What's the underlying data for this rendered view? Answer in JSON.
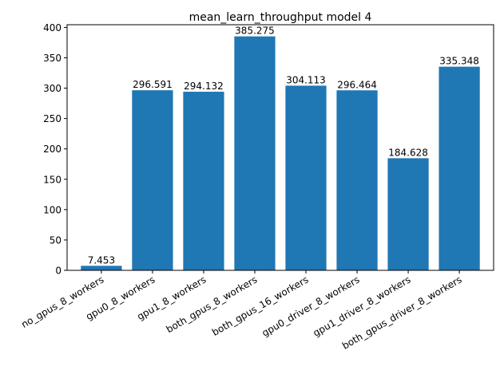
{
  "chart_data": {
    "type": "bar",
    "title": "mean_learn_throughput model 4",
    "xlabel": "",
    "ylabel": "",
    "categories": [
      "no_gpus_8_workers",
      "gpu0_8_workers",
      "gpu1_8_workers",
      "both_gpus_8_workers",
      "both_gpus_16_workers",
      "gpu0_driver_8_workers",
      "gpu1_driver_8_workers",
      "both_gpus_driver_8_workers"
    ],
    "values": [
      7.453,
      296.591,
      294.132,
      385.275,
      304.113,
      296.464,
      184.628,
      335.348
    ],
    "value_labels": [
      "7.453",
      "296.591",
      "294.132",
      "385.275",
      "304.113",
      "296.464",
      "184.628",
      "335.348"
    ],
    "ylim": [
      0,
      404.5
    ],
    "yticks": [
      0,
      50,
      100,
      150,
      200,
      250,
      300,
      350,
      400
    ],
    "grid": false,
    "bar_color": "#1f77b4"
  }
}
